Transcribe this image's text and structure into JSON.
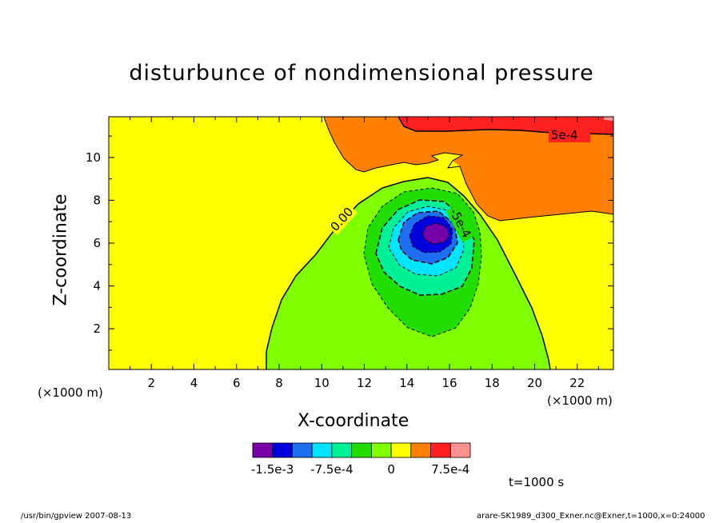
{
  "chart_data": {
    "type": "contour",
    "title": "disturbunce of nondimensional pressure",
    "xlabel": "X-coordinate",
    "ylabel": "Z-coordinate",
    "x_unit": "(×1000 m)",
    "y_unit": "(×1000 m)",
    "xlim": [
      0,
      23.7
    ],
    "ylim": [
      0.1,
      11.9
    ],
    "x_ticks": [
      2,
      4,
      6,
      8,
      10,
      12,
      14,
      16,
      18,
      20,
      22
    ],
    "y_ticks": [
      2,
      4,
      6,
      8,
      10
    ],
    "contour_labels": [
      "5e-4",
      "0.00",
      "-5e-4"
    ],
    "colorbar": {
      "labels": [
        "-1.5e-3",
        "-7.5e-4",
        "0",
        "7.5e-4"
      ],
      "label_values": [
        -0.0015,
        -0.00075,
        0,
        0.00075
      ],
      "levels": [
        -0.00175,
        -0.0015,
        -0.00125,
        -0.001,
        -0.00075,
        -0.0005,
        -0.00025,
        0,
        0.00025,
        0.0005,
        0.00075,
        0.001
      ],
      "colors": [
        "#7700aa",
        "#0000dd",
        "#1e6ef0",
        "#00e4ff",
        "#00f098",
        "#22dd00",
        "#80ff00",
        "#ffff00",
        "#ff7f00",
        "#ff2020",
        "#ff9090"
      ]
    },
    "regions": {
      "background_level": "0 to 2.5e-4",
      "positive_top_right": "2.5e-4 to 7.5e-4",
      "negative_center_x": 15.3,
      "negative_center_z": 6.4,
      "minimum_below": -0.0015
    }
  },
  "time_label": "t=1000 s",
  "footer_left": "/usr/bin/gpview   2007-08-13",
  "footer_right": "arare-SK1989_d300_Exner.nc@Exner,t=1000,x=0:24000"
}
